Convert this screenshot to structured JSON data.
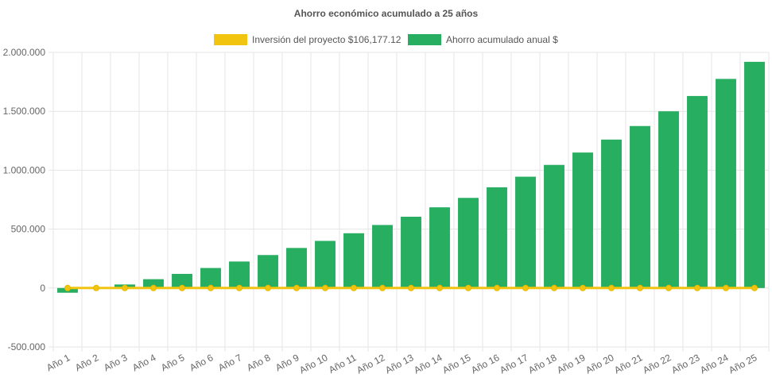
{
  "chart_data": {
    "type": "bar",
    "title": "Ahorro económico acumulado a 25 años",
    "categories": [
      "Año 1",
      "Año 2",
      "Año 3",
      "Año 4",
      "Año 5",
      "Año 6",
      "Año 7",
      "Año 8",
      "Año 9",
      "Año 10",
      "Año 11",
      "Año 12",
      "Año 13",
      "Año 14",
      "Año 15",
      "Año 16",
      "Año 17",
      "Año 18",
      "Año 19",
      "Año 20",
      "Año 21",
      "Año 22",
      "Año 23",
      "Año 24",
      "Año 25"
    ],
    "series": [
      {
        "name": "Inversión del proyecto $106,177.12",
        "type": "line",
        "color": "#f1c40f",
        "values": [
          0,
          0,
          0,
          0,
          0,
          0,
          0,
          0,
          0,
          0,
          0,
          0,
          0,
          0,
          0,
          0,
          0,
          0,
          0,
          0,
          0,
          0,
          0,
          0,
          0
        ]
      },
      {
        "name": "Ahorro acumulado anual $",
        "type": "bar",
        "color": "#27ae60",
        "values": [
          -40000,
          0,
          30000,
          75000,
          120000,
          170000,
          225000,
          280000,
          340000,
          400000,
          465000,
          535000,
          605000,
          685000,
          765000,
          855000,
          945000,
          1045000,
          1150000,
          1260000,
          1375000,
          1500000,
          1630000,
          1775000,
          1920000
        ]
      }
    ],
    "ylim": [
      -500000,
      2000000
    ],
    "yticks": [
      -500000,
      0,
      500000,
      1000000,
      1500000,
      2000000
    ],
    "ytick_labels": [
      "-500.000",
      "0",
      "500.000",
      "1.000.000",
      "1.500.000",
      "2.000.000"
    ],
    "xlabel": "",
    "ylabel": "",
    "grid": true,
    "legend_position": "top"
  }
}
